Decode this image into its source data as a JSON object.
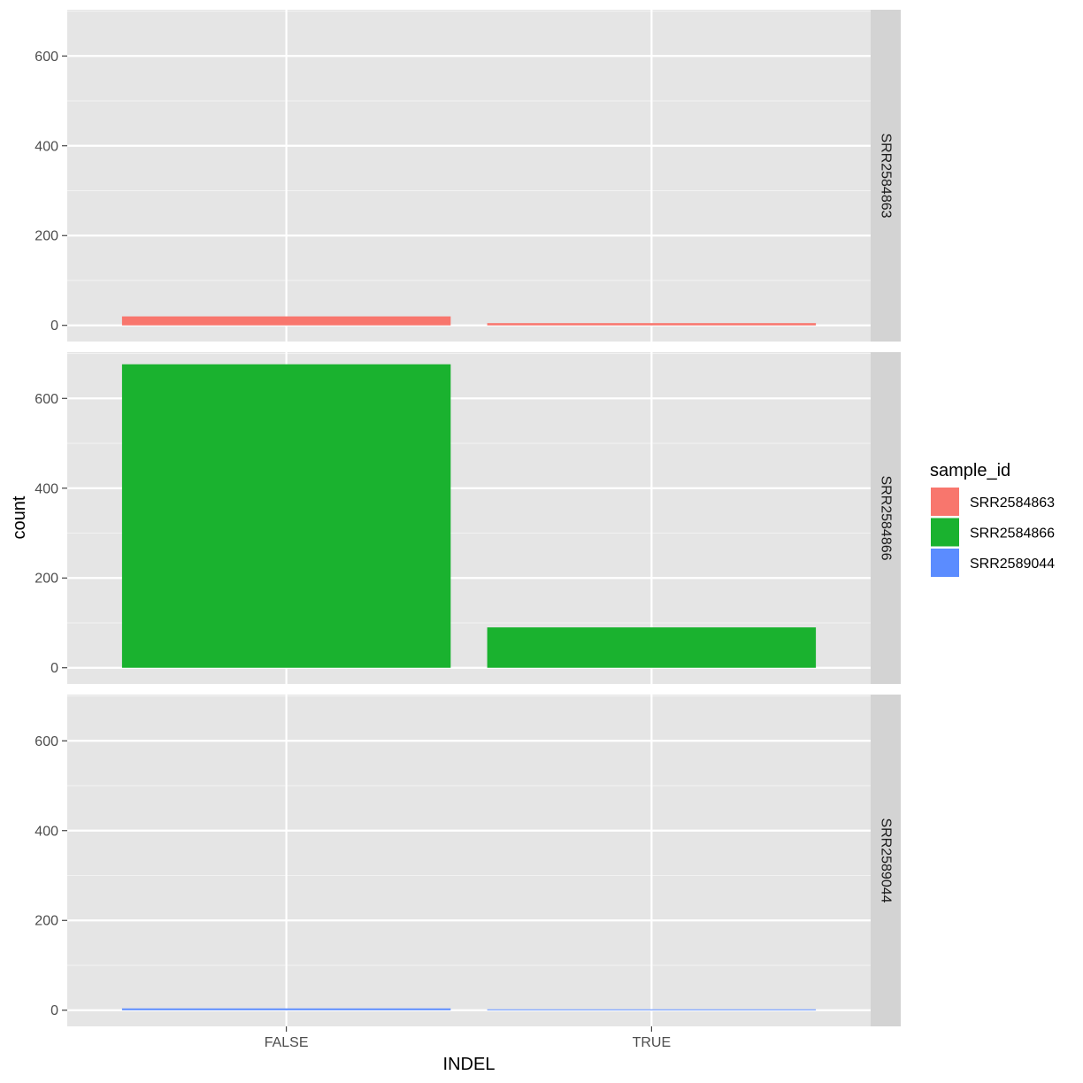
{
  "chart_data": {
    "type": "bar",
    "xlabel": "INDEL",
    "ylabel": "count",
    "categories": [
      "FALSE",
      "TRUE"
    ],
    "ylim": [
      0,
      700
    ],
    "yticks": [
      0,
      200,
      400,
      600
    ],
    "facet_by": "sample_id",
    "legend": {
      "title": "sample_id",
      "placement": "right",
      "entries": [
        {
          "label": "SRR2584863",
          "color": "#F8766D"
        },
        {
          "label": "SRR2584866",
          "color": "#1AB22F"
        },
        {
          "label": "SRR2589044",
          "color": "#5B8CFF"
        }
      ]
    },
    "series": [
      {
        "name": "SRR2584863",
        "strip": "SRR2584863",
        "color": "#F8766D",
        "values": [
          20,
          5
        ]
      },
      {
        "name": "SRR2584866",
        "strip": "SRR2584866",
        "color": "#1AB22F",
        "values": [
          676,
          90
        ]
      },
      {
        "name": "SRR2589044",
        "strip": "SRR2589044",
        "color": "#5B8CFF",
        "values": [
          4,
          2
        ]
      }
    ],
    "grid": true,
    "panel_background": "#E5E5E5",
    "strip_background": "#D3D3D3"
  }
}
